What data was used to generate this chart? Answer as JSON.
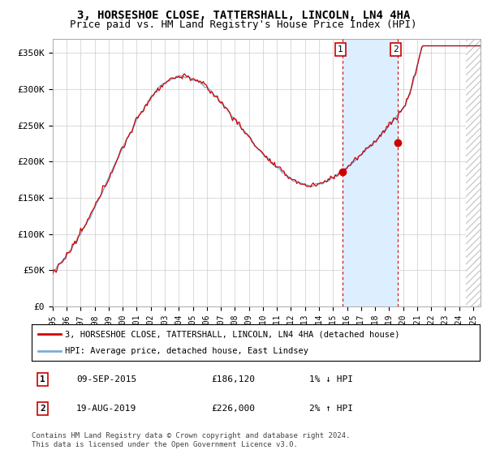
{
  "title": "3, HORSESHOE CLOSE, TATTERSHALL, LINCOLN, LN4 4HA",
  "subtitle": "Price paid vs. HM Land Registry's House Price Index (HPI)",
  "ylabel_ticks": [
    "£0",
    "£50K",
    "£100K",
    "£150K",
    "£200K",
    "£250K",
    "£300K",
    "£350K"
  ],
  "ytick_vals": [
    0,
    50000,
    100000,
    150000,
    200000,
    250000,
    300000,
    350000
  ],
  "ylim": [
    0,
    370000
  ],
  "xlim_start": 1995.0,
  "xlim_end": 2025.5,
  "legend_line1": "3, HORSESHOE CLOSE, TATTERSHALL, LINCOLN, LN4 4HA (detached house)",
  "legend_line2": "HPI: Average price, detached house, East Lindsey",
  "sale1_date": "09-SEP-2015",
  "sale1_price": "£186,120",
  "sale1_hpi": "1% ↓ HPI",
  "sale1_year": 2015.69,
  "sale1_value": 186120,
  "sale2_date": "19-AUG-2019",
  "sale2_price": "£226,000",
  "sale2_hpi": "2% ↑ HPI",
  "sale2_year": 2019.63,
  "sale2_value": 226000,
  "shaded_region_x1": 2015.69,
  "shaded_region_x2": 2019.63,
  "footer": "Contains HM Land Registry data © Crown copyright and database right 2024.\nThis data is licensed under the Open Government Licence v3.0.",
  "hpi_color": "#7aaed6",
  "price_color": "#cc0000",
  "shade_color": "#ddeeff",
  "background_color": "#ffffff",
  "grid_color": "#cccccc",
  "title_fontsize": 10,
  "subtitle_fontsize": 9,
  "hatch_color": "#cccccc"
}
